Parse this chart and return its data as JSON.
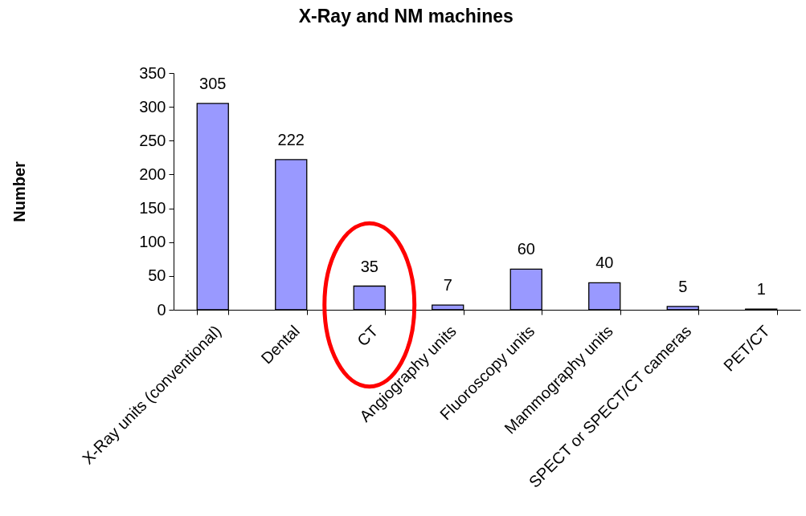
{
  "chart_data": {
    "type": "bar",
    "title": "X-Ray and NM machines",
    "ylabel": "Number",
    "categories": [
      "X-Ray units (conventional)",
      "Dental",
      "CT",
      "Angiography units",
      "Fluoroscopy units",
      "Mammography units",
      "SPECT or SPECT/CT cameras",
      "PET/CT"
    ],
    "values": [
      305,
      222,
      35,
      7,
      60,
      40,
      5,
      1
    ],
    "color": "#9999ff",
    "ylim": [
      0,
      350
    ],
    "yticks": [
      0,
      50,
      100,
      150,
      200,
      250,
      300,
      350
    ],
    "data_labels": true,
    "grid": false
  }
}
